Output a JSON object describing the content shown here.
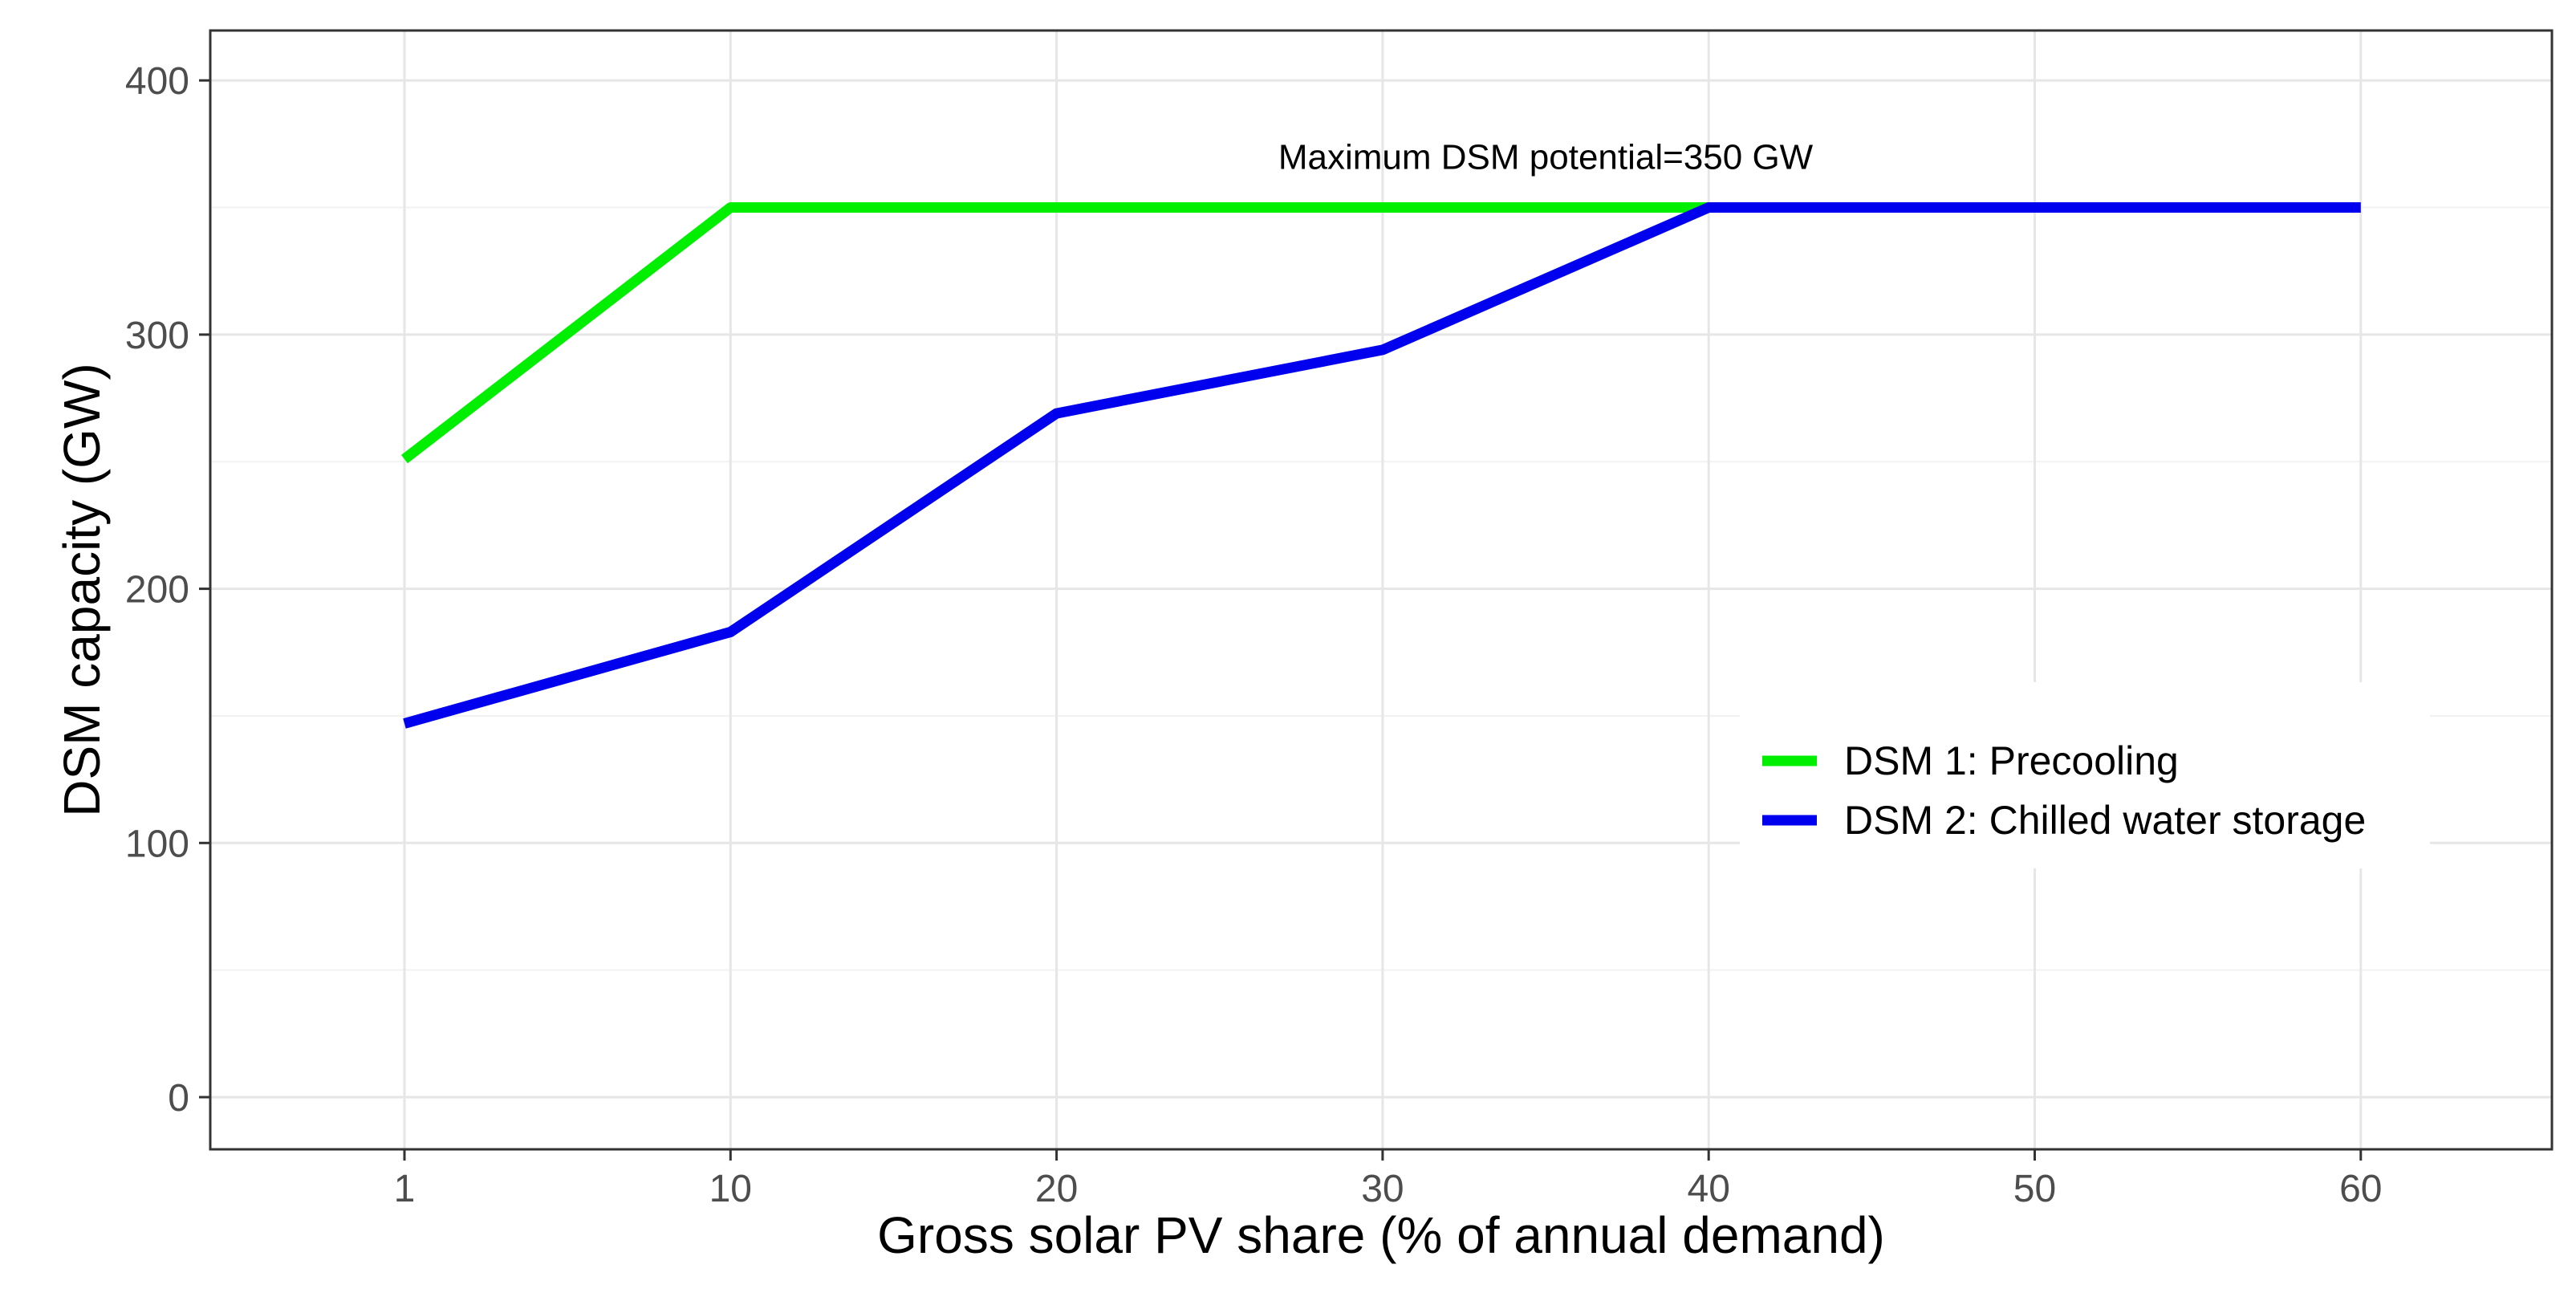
{
  "chart_data": {
    "type": "line",
    "title": "",
    "xlabel": "Gross solar PV share (% of annual demand)",
    "ylabel": "DSM capacity (GW)",
    "x_ticks": [
      "1",
      "10",
      "20",
      "30",
      "40",
      "50",
      "60"
    ],
    "y_ticks": [
      "0",
      "100",
      "200",
      "300",
      "400"
    ],
    "xlim": [
      1,
      60
    ],
    "ylim": [
      0,
      400
    ],
    "grid": true,
    "legend_position": "right",
    "series": [
      {
        "name": "DSM 1: Precooling",
        "color": "#00ee00",
        "points": [
          {
            "x": "1",
            "y": 251
          },
          {
            "x": "10",
            "y": 350
          },
          {
            "x": "20",
            "y": 350
          },
          {
            "x": "30",
            "y": 350
          },
          {
            "x": "40",
            "y": 350
          }
        ]
      },
      {
        "name": "DSM 2: Chilled water storage",
        "color": "#0000ee",
        "points": [
          {
            "x": "1",
            "y": 147
          },
          {
            "x": "10",
            "y": 183
          },
          {
            "x": "20",
            "y": 269
          },
          {
            "x": "30",
            "y": 294
          },
          {
            "x": "40",
            "y": 350
          },
          {
            "x": "50",
            "y": 350
          },
          {
            "x": "60",
            "y": 350
          }
        ]
      }
    ],
    "annotations": [
      {
        "text": "Maximum DSM potential=350 GW",
        "x": "35",
        "y": 350
      }
    ]
  }
}
